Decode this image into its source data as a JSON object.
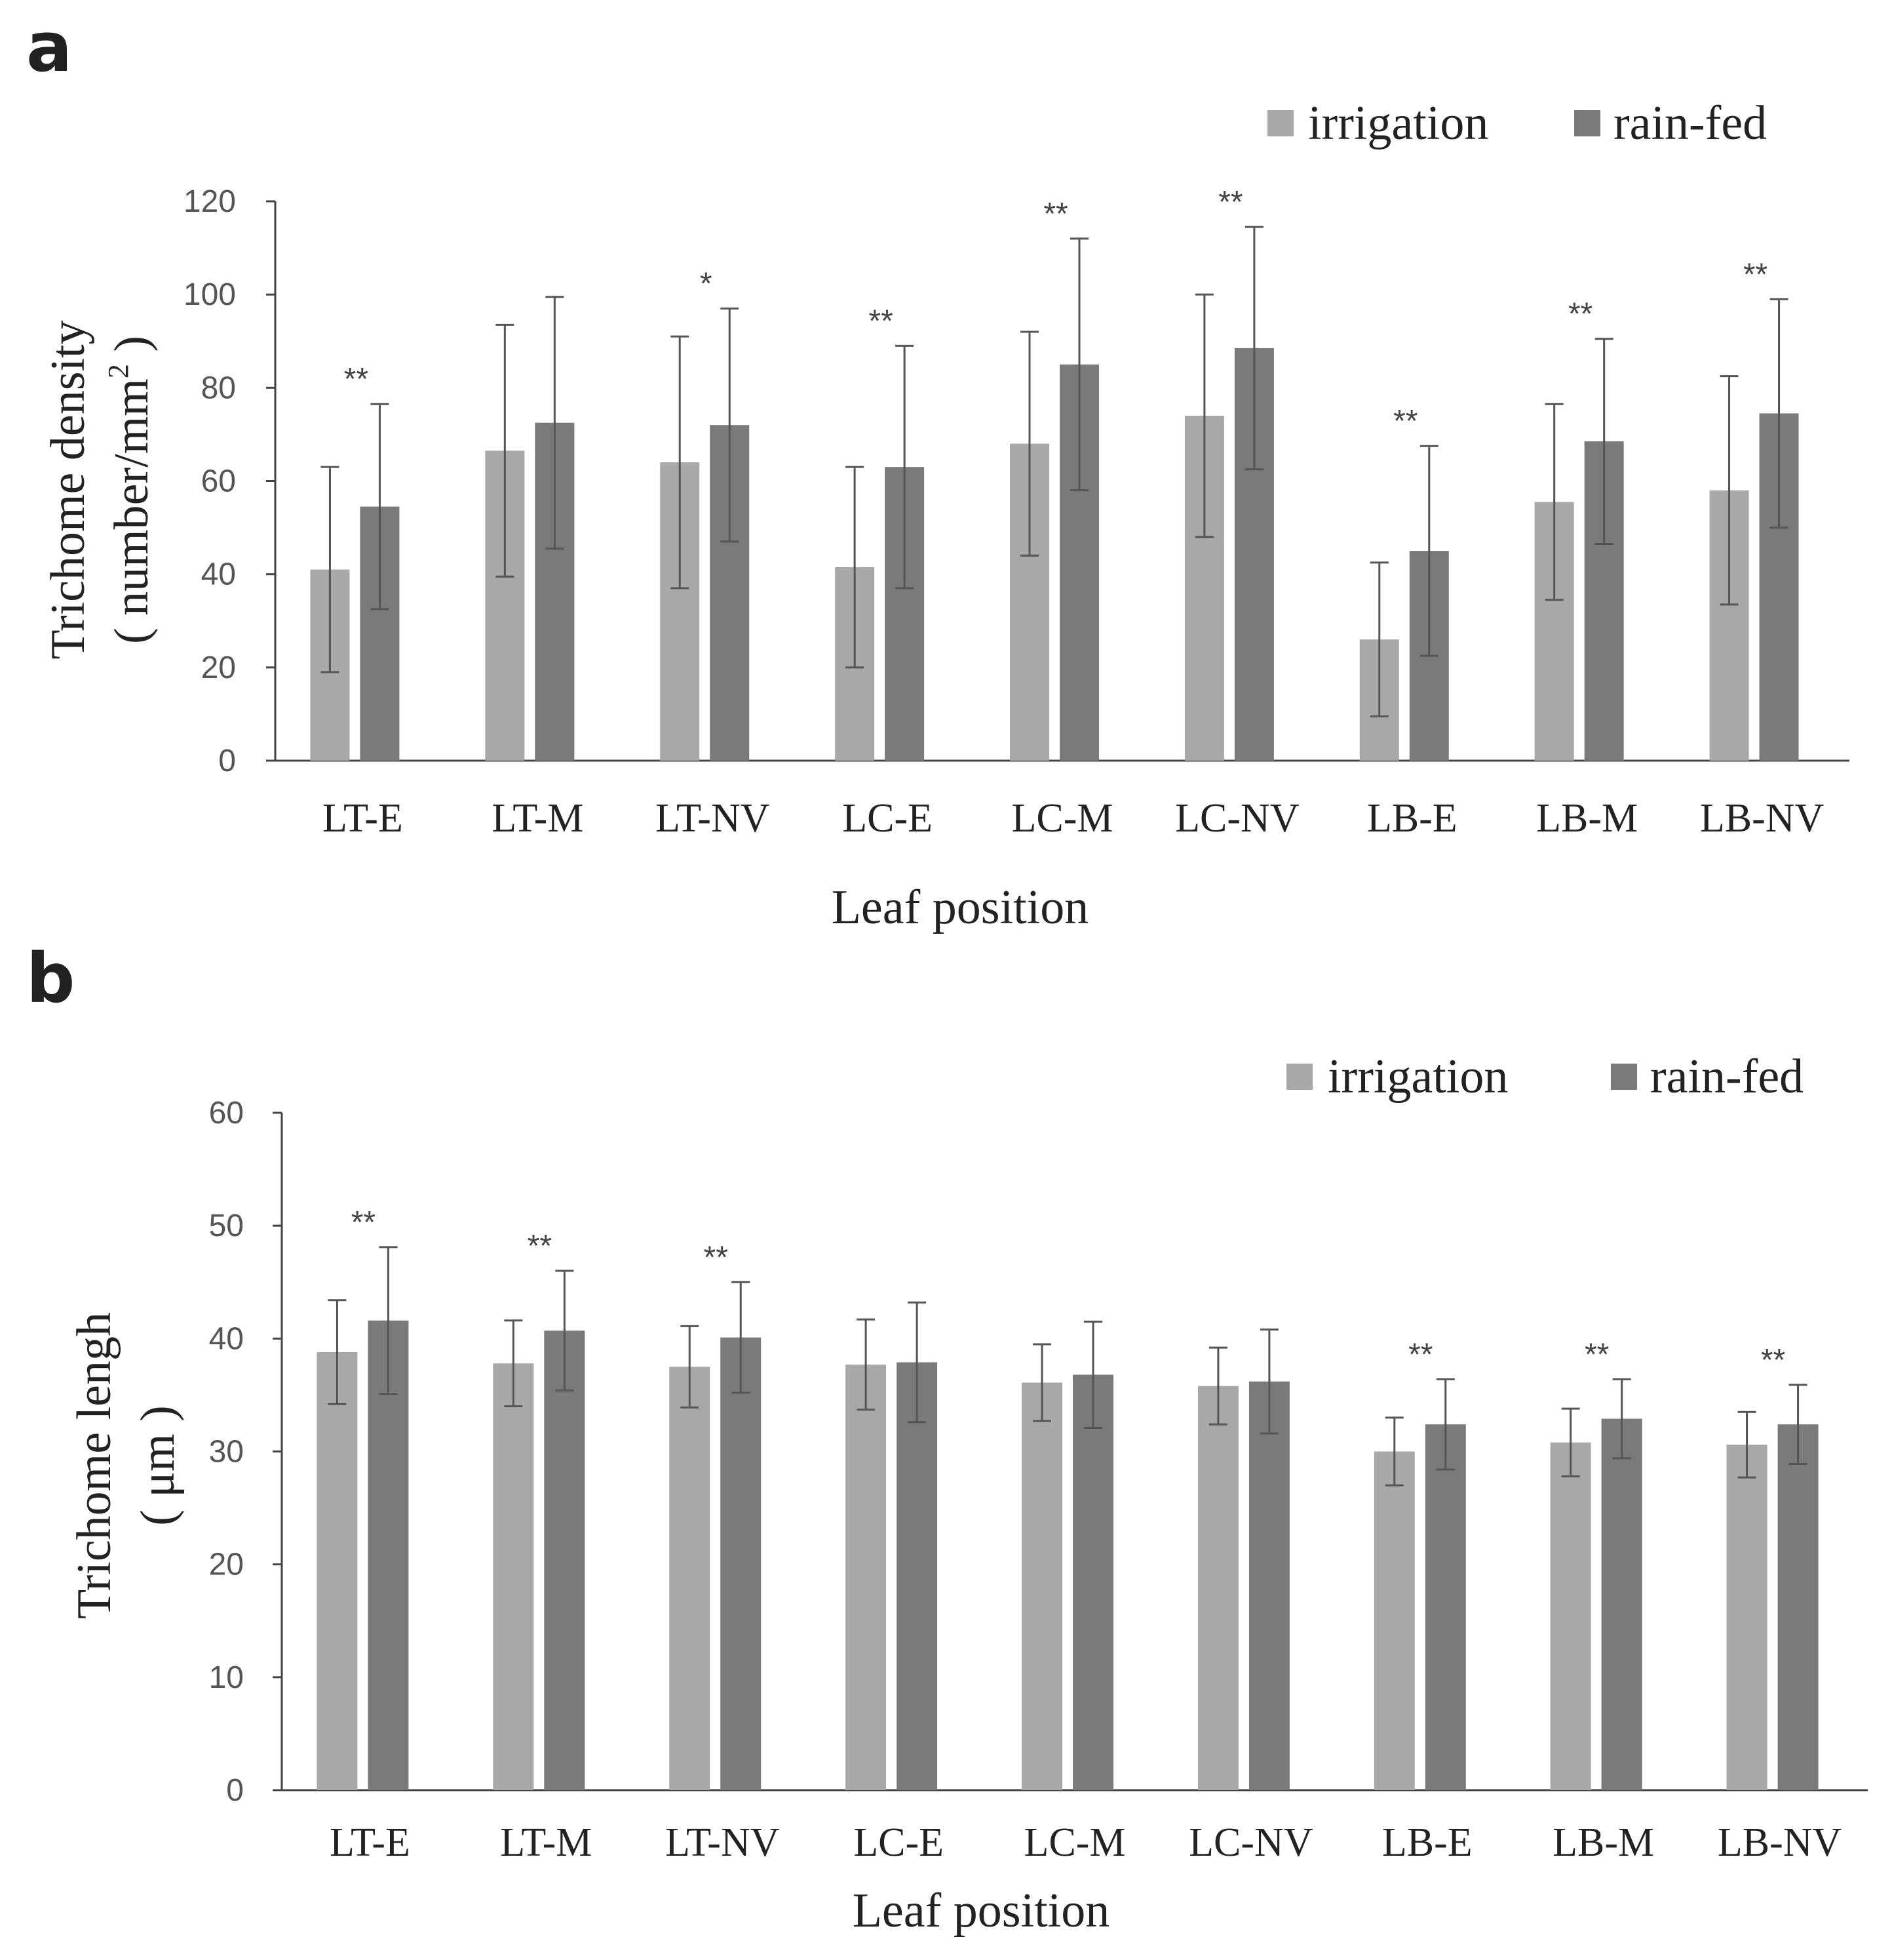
{
  "chart_data": [
    {
      "panel": "a",
      "type": "bar",
      "categories": [
        "LT-E",
        "LT-M",
        "LT-NV",
        "LC-E",
        "LC-M",
        "LC-NV",
        "LB-E",
        "LB-M",
        "LB-NV"
      ],
      "series": [
        {
          "name": "irrigation",
          "color": "#a8a8a8",
          "values": [
            41,
            66.5,
            64,
            41.5,
            68,
            74,
            26,
            55.5,
            58
          ],
          "errors": [
            22,
            27,
            27,
            21.5,
            24,
            26,
            16.5,
            21,
            24.5
          ]
        },
        {
          "name": "rain-fed",
          "color": "#7a7a7a",
          "values": [
            54.5,
            72.5,
            72,
            63,
            85,
            88.5,
            45,
            68.5,
            74.5
          ],
          "errors": [
            22,
            27,
            25,
            26,
            27,
            26,
            22.5,
            22,
            24.5
          ]
        }
      ],
      "significance": [
        "**",
        "",
        "*",
        "**",
        "**",
        "**",
        "**",
        "**",
        "**"
      ],
      "ylabel_line1": "Trichome density",
      "ylabel_line2": "( number/mm",
      "ylabel_sup": "2",
      "ylabel_close": " )",
      "xlabel": "Leaf position",
      "ylim": [
        0,
        120
      ],
      "yticks": [
        0,
        20,
        40,
        60,
        80,
        100,
        120
      ],
      "legend": "top-right"
    },
    {
      "panel": "b",
      "type": "bar",
      "categories": [
        "LT-E",
        "LT-M",
        "LT-NV",
        "LC-E",
        "LC-M",
        "LC-NV",
        "LB-E",
        "LB-M",
        "LB-NV"
      ],
      "series": [
        {
          "name": "irrigation",
          "color": "#a8a8a8",
          "values": [
            38.8,
            37.8,
            37.5,
            37.7,
            36.1,
            35.8,
            30,
            30.8,
            30.6
          ],
          "errors": [
            4.6,
            3.8,
            3.6,
            4,
            3.4,
            3.4,
            3,
            3,
            2.9
          ]
        },
        {
          "name": "rain-fed",
          "color": "#7a7a7a",
          "values": [
            41.6,
            40.7,
            40.1,
            37.9,
            36.8,
            36.2,
            32.4,
            32.9,
            32.4
          ],
          "errors": [
            6.5,
            5.3,
            4.9,
            5.3,
            4.7,
            4.6,
            4,
            3.5,
            3.5
          ]
        }
      ],
      "significance": [
        "**",
        "**",
        "**",
        "",
        "",
        "",
        "**",
        "**",
        "**"
      ],
      "ylabel_line1": "Trichome lengh",
      "ylabel_line2": "( μm )",
      "xlabel": "Leaf position",
      "ylim": [
        0,
        60
      ],
      "yticks": [
        0,
        10,
        20,
        30,
        40,
        50,
        60
      ],
      "legend": "top-right"
    }
  ]
}
